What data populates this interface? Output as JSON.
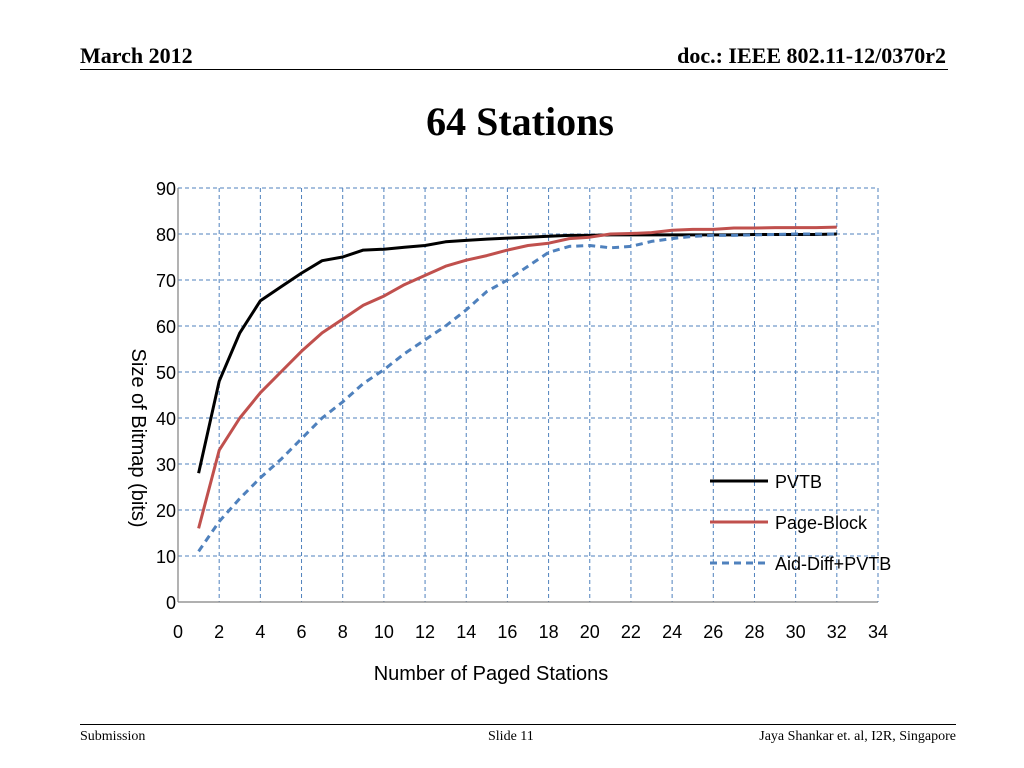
{
  "header": {
    "date": "March 2012",
    "doc": "doc.: IEEE 802.11-12/0370r2"
  },
  "slide_title": "64 Stations",
  "footer": {
    "left": "Submission",
    "center": "Slide 11",
    "right": "Jaya Shankar et. al, I2R, Singapore"
  },
  "chart_data": {
    "type": "line",
    "xlabel": "Number of Paged Stations",
    "ylabel": "Size of Bitmap (bits)",
    "xlim": [
      0,
      34
    ],
    "ylim": [
      0,
      90
    ],
    "xticks": [
      0,
      2,
      4,
      6,
      8,
      10,
      12,
      14,
      16,
      18,
      20,
      22,
      24,
      26,
      28,
      30,
      32,
      34
    ],
    "yticks": [
      0,
      10,
      20,
      30,
      40,
      50,
      60,
      70,
      80,
      90
    ],
    "grid": true,
    "legend_position": "bottom-right",
    "series": [
      {
        "name": "PVTB",
        "color": "#000000",
        "style": "solid",
        "x": [
          1,
          2,
          3,
          4,
          5,
          6,
          7,
          8,
          9,
          10,
          11,
          12,
          13,
          14,
          15,
          16,
          17,
          18,
          19,
          20,
          21,
          22,
          23,
          24,
          25,
          26,
          27,
          28,
          29,
          30,
          31,
          32
        ],
        "y": [
          28,
          48,
          58.5,
          65.5,
          68.5,
          71.5,
          74.2,
          75,
          76.5,
          76.7,
          77.1,
          77.5,
          78.3,
          78.6,
          78.9,
          79.1,
          79.3,
          79.5,
          79.7,
          79.7,
          79.8,
          79.8,
          79.8,
          79.8,
          79.8,
          79.8,
          79.8,
          79.9,
          79.9,
          79.9,
          79.9,
          80
        ]
      },
      {
        "name": "Page-Block",
        "color": "#c0504d",
        "style": "solid",
        "x": [
          1,
          2,
          3,
          4,
          5,
          6,
          7,
          8,
          9,
          10,
          11,
          12,
          13,
          14,
          15,
          16,
          17,
          18,
          19,
          20,
          21,
          22,
          23,
          24,
          25,
          26,
          27,
          28,
          29,
          30,
          31,
          32
        ],
        "y": [
          16,
          33,
          40,
          45.5,
          50,
          54.5,
          58.5,
          61.5,
          64.5,
          66.5,
          69,
          71,
          73,
          74.3,
          75.3,
          76.5,
          77.5,
          78,
          79,
          79.3,
          80,
          80.1,
          80.3,
          80.8,
          81,
          81,
          81.3,
          81.3,
          81.4,
          81.4,
          81.4,
          81.5
        ]
      },
      {
        "name": "Aid-Diff+PVTB",
        "color": "#4f81bd",
        "style": "dashed",
        "x": [
          1,
          2,
          3,
          4,
          5,
          6,
          7,
          8,
          9,
          10,
          11,
          12,
          13,
          14,
          15,
          16,
          17,
          18,
          19,
          20,
          21,
          22,
          23,
          24,
          25,
          26,
          27,
          28,
          29,
          30,
          31,
          32
        ],
        "y": [
          11,
          17.5,
          22.5,
          27,
          31,
          35.5,
          40,
          43.5,
          47.5,
          50.5,
          54,
          57,
          60,
          63.5,
          67.5,
          70,
          73,
          76,
          77.3,
          77.5,
          77,
          77.3,
          78.4,
          79,
          79.5,
          79.7,
          79.7,
          79.8,
          79.9,
          80,
          80,
          80
        ]
      }
    ]
  }
}
